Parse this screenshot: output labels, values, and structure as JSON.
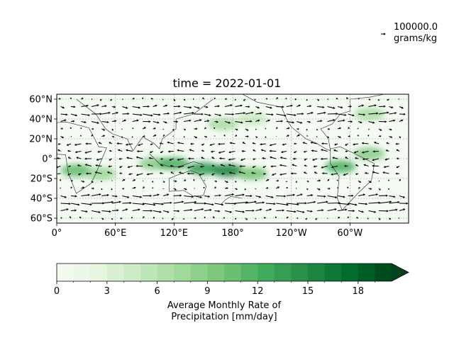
{
  "chart_data": {
    "type": "heatmap",
    "title": "time = 2022-01-01",
    "overlay": "quiver",
    "x_ticks": [
      "0°",
      "60°E",
      "120°E",
      "180°",
      "120°W",
      "60°W"
    ],
    "y_ticks": [
      "60°N",
      "40°N",
      "20°N",
      "0°",
      "20°S",
      "40°S",
      "60°S"
    ],
    "x_tick_lon": [
      0,
      60,
      120,
      180,
      240,
      300
    ],
    "y_tick_lat": [
      60,
      40,
      20,
      0,
      -20,
      -40,
      -60
    ],
    "lon_range": [
      0,
      360
    ],
    "lat_range": [
      -65,
      65
    ],
    "grid": true,
    "colorbar": {
      "label_line1": "Average Monthly Rate of",
      "label_line2": "Precipitation [mm/day]",
      "ticks": [
        "0",
        "3",
        "6",
        "9",
        "12",
        "15",
        "18"
      ],
      "tick_values": [
        0,
        3,
        6,
        9,
        12,
        15,
        18
      ],
      "range": [
        0,
        20
      ],
      "levels": 20,
      "extend": "max",
      "cmap": "Greens"
    },
    "quiver_key": {
      "line1": "100000.0",
      "line2": "grams/kg"
    },
    "precip_regions": [
      {
        "lon": 20,
        "lat": -12,
        "value": 11
      },
      {
        "lon": 45,
        "lat": -15,
        "value": 8
      },
      {
        "lon": 100,
        "lat": -5,
        "value": 9
      },
      {
        "lon": 120,
        "lat": -5,
        "value": 12
      },
      {
        "lon": 150,
        "lat": -10,
        "value": 14
      },
      {
        "lon": 175,
        "lat": -12,
        "value": 16
      },
      {
        "lon": 200,
        "lat": -15,
        "value": 10
      },
      {
        "lon": 290,
        "lat": -8,
        "value": 12
      },
      {
        "lon": 320,
        "lat": 5,
        "value": 9
      },
      {
        "lon": 170,
        "lat": 35,
        "value": 7
      },
      {
        "lon": 320,
        "lat": 45,
        "value": 7
      },
      {
        "lon": 200,
        "lat": 40,
        "value": 5
      }
    ]
  }
}
